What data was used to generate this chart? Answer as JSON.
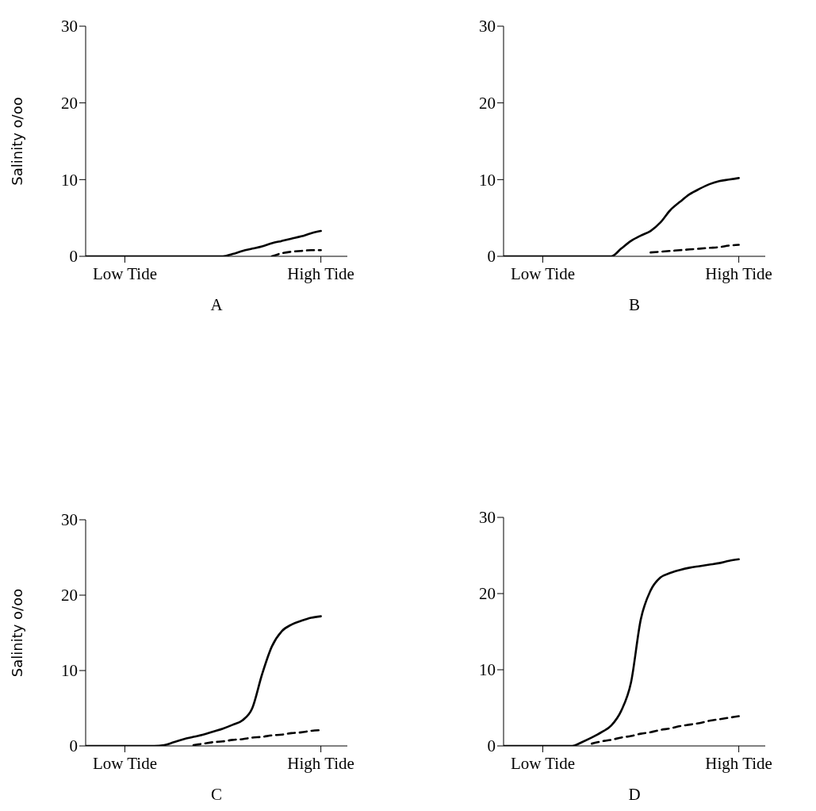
{
  "chart_data": [
    {
      "type": "line",
      "xlabel": "A",
      "ylabel": "Salinity o/oo",
      "categories": [
        null,
        null,
        null,
        null,
        "Low Tide",
        null,
        null,
        null,
        null,
        null,
        null,
        null,
        null,
        null,
        null,
        null,
        null,
        null,
        null,
        null,
        null,
        null,
        null,
        null,
        "High Tide"
      ],
      "ylim": [
        0,
        30
      ],
      "yticks": [
        0,
        10,
        20,
        30
      ],
      "marker": "none",
      "series": [
        {
          "color": "#000000",
          "line_style": "solid",
          "values": [
            0,
            0,
            0,
            0,
            0,
            0,
            0,
            0,
            0,
            0,
            0,
            0,
            0,
            0,
            0,
            0.3,
            0.7,
            1,
            1.3,
            1.7,
            2,
            2.3,
            2.6,
            3,
            3.3
          ]
        },
        {
          "color": "#000000",
          "line_style": "dashed",
          "values": [
            null,
            null,
            null,
            null,
            null,
            null,
            null,
            null,
            null,
            null,
            null,
            null,
            null,
            null,
            null,
            null,
            null,
            null,
            null,
            0,
            0.4,
            0.6,
            0.7,
            0.8,
            0.8
          ]
        }
      ]
    },
    {
      "type": "line",
      "xlabel": "B",
      "categories": [
        null,
        null,
        null,
        null,
        "Low Tide",
        null,
        null,
        null,
        null,
        null,
        null,
        null,
        null,
        null,
        null,
        null,
        null,
        null,
        null,
        null,
        null,
        null,
        null,
        null,
        "High Tide"
      ],
      "ylim": [
        0,
        30
      ],
      "yticks": [
        0,
        10,
        20,
        30
      ],
      "marker": "none",
      "series": [
        {
          "color": "#000000",
          "line_style": "solid",
          "values": [
            0,
            0,
            0,
            0,
            0,
            0,
            0,
            0,
            0,
            0,
            0,
            0,
            1,
            2,
            2.7,
            3.3,
            4.4,
            6,
            7.1,
            8.1,
            8.8,
            9.4,
            9.8,
            10,
            10.2
          ]
        },
        {
          "color": "#000000",
          "line_style": "dashed",
          "values": [
            null,
            null,
            null,
            null,
            null,
            null,
            null,
            null,
            null,
            null,
            null,
            null,
            null,
            null,
            null,
            0.5,
            0.6,
            0.7,
            0.8,
            0.9,
            1,
            1.1,
            1.2,
            1.4,
            1.5
          ]
        }
      ]
    },
    {
      "type": "line",
      "xlabel": "C",
      "ylabel": "Salinity o/oo",
      "categories": [
        null,
        null,
        null,
        null,
        "Low Tide",
        null,
        null,
        null,
        null,
        null,
        null,
        null,
        null,
        null,
        null,
        null,
        null,
        null,
        null,
        null,
        null,
        null,
        null,
        null,
        "High Tide"
      ],
      "ylim": [
        0,
        30
      ],
      "yticks": [
        0,
        10,
        20,
        30
      ],
      "marker": "none",
      "series": [
        {
          "color": "#000000",
          "line_style": "solid",
          "values": [
            0,
            0,
            0,
            0,
            0,
            0,
            0,
            0,
            0.1,
            0.5,
            0.9,
            1.2,
            1.5,
            1.9,
            2.3,
            2.8,
            3.4,
            5,
            9.5,
            13.2,
            15.2,
            16.1,
            16.6,
            17,
            17.2
          ]
        },
        {
          "color": "#000000",
          "line_style": "dashed",
          "values": [
            null,
            null,
            null,
            null,
            null,
            null,
            null,
            null,
            null,
            null,
            null,
            0.1,
            0.3,
            0.5,
            0.6,
            0.8,
            0.9,
            1.1,
            1.2,
            1.4,
            1.5,
            1.7,
            1.8,
            2,
            2.1
          ]
        }
      ]
    },
    {
      "type": "line",
      "xlabel": "D",
      "categories": [
        null,
        null,
        null,
        null,
        "Low Tide",
        null,
        null,
        null,
        null,
        null,
        null,
        null,
        null,
        null,
        null,
        null,
        null,
        null,
        null,
        null,
        null,
        null,
        null,
        null,
        "High Tide"
      ],
      "ylim": [
        0,
        30
      ],
      "yticks": [
        0,
        10,
        20,
        30
      ],
      "marker": "none",
      "series": [
        {
          "color": "#000000",
          "line_style": "solid",
          "values": [
            0,
            0,
            0,
            0,
            0,
            0,
            0,
            0,
            0.5,
            1.1,
            1.8,
            2.7,
            4.6,
            8.3,
            16.6,
            20.4,
            22.1,
            22.7,
            23.1,
            23.4,
            23.6,
            23.8,
            24,
            24.3,
            24.5
          ]
        },
        {
          "color": "#000000",
          "line_style": "dashed",
          "values": [
            null,
            null,
            null,
            null,
            null,
            null,
            null,
            null,
            null,
            0.3,
            0.6,
            0.8,
            1.1,
            1.3,
            1.6,
            1.8,
            2.1,
            2.3,
            2.6,
            2.8,
            3,
            3.3,
            3.5,
            3.7,
            3.9
          ]
        }
      ]
    }
  ]
}
